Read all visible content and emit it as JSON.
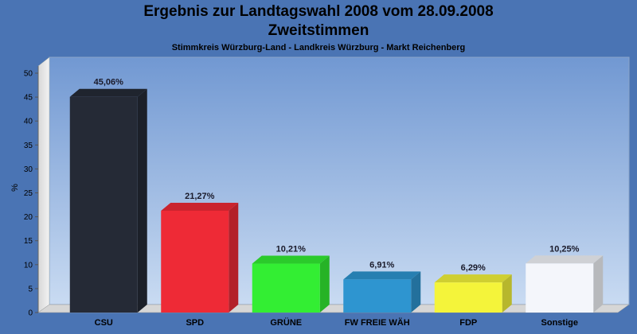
{
  "chart_data": {
    "type": "bar",
    "title": "Ergebnis zur Landtagswahl 2008 vom 28.09.2008",
    "title_line2": "Zweitstimmen",
    "subtitle": "Stimmkreis Würzburg-Land - Landkreis Würzburg - Markt Reichenberg",
    "ylabel": "%",
    "xlabel": "",
    "ylim": [
      0,
      50
    ],
    "yticks": [
      0,
      5,
      10,
      15,
      20,
      25,
      30,
      35,
      40,
      45,
      50
    ],
    "grid": false,
    "categories": [
      "CSU",
      "SPD",
      "GRÜNE",
      "FW FREIE WÄH",
      "FDP",
      "Sonstige"
    ],
    "values": [
      45.06,
      21.27,
      10.21,
      6.91,
      6.29,
      10.25
    ],
    "value_labels": [
      "45,06%",
      "21,27%",
      "10,21%",
      "6,91%",
      "6,29%",
      "10,25%"
    ],
    "colors": [
      "#252a36",
      "#ee2a36",
      "#33ee33",
      "#2e95d0",
      "#f4f43a",
      "#f4f6fb"
    ]
  }
}
